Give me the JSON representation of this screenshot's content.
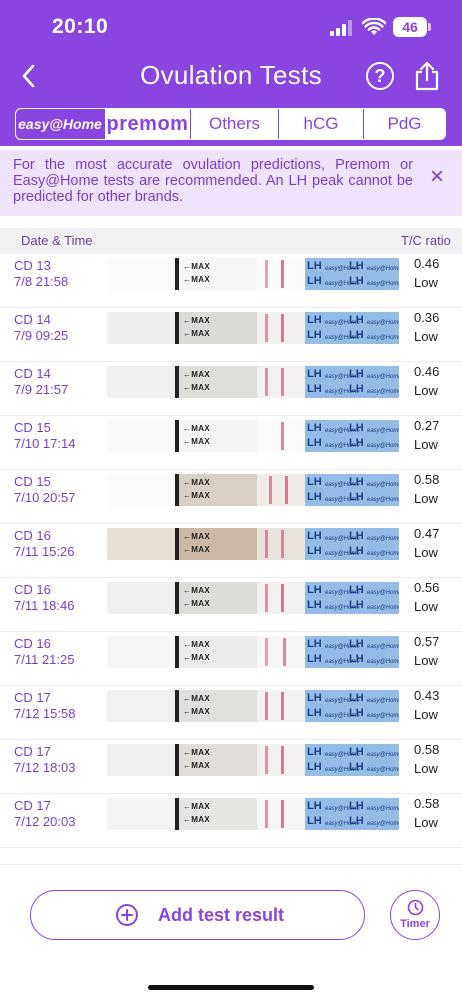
{
  "status_bar": {
    "time": "20:10",
    "battery": "46"
  },
  "nav": {
    "title": "Ovulation Tests"
  },
  "tabs": [
    {
      "label": "easy@Home",
      "active": true
    },
    {
      "label": "premom",
      "active": false
    },
    {
      "label": "Others",
      "active": false
    },
    {
      "label": "hCG",
      "active": false
    },
    {
      "label": "PdG",
      "active": false
    }
  ],
  "banner": {
    "text": "For the most accurate ovulation predictions, Premom or Easy@Home tests are recommended. An LH peak cannot be predicted for other brands."
  },
  "columns": {
    "date": "Date & Time",
    "ratio": "T/C ratio"
  },
  "strip_text": {
    "max": "MAX",
    "brand": "LH",
    "logo": "easy@Home"
  },
  "tests": [
    {
      "cd": "CD 13",
      "datetime": "7/8 21:58",
      "ratio": "0.46",
      "result": "Low"
    },
    {
      "cd": "CD 14",
      "datetime": "7/9 09:25",
      "ratio": "0.36",
      "result": "Low"
    },
    {
      "cd": "CD 14",
      "datetime": "7/9 21:57",
      "ratio": "0.46",
      "result": "Low"
    },
    {
      "cd": "CD 15",
      "datetime": "7/10 17:14",
      "ratio": "0.27",
      "result": "Low"
    },
    {
      "cd": "CD 15",
      "datetime": "7/10 20:57",
      "ratio": "0.58",
      "result": "Low"
    },
    {
      "cd": "CD 16",
      "datetime": "7/11 15:26",
      "ratio": "0.47",
      "result": "Low"
    },
    {
      "cd": "CD 16",
      "datetime": "7/11 18:46",
      "ratio": "0.56",
      "result": "Low"
    },
    {
      "cd": "CD 16",
      "datetime": "7/11 21:25",
      "ratio": "0.57",
      "result": "Low"
    },
    {
      "cd": "CD 17",
      "datetime": "7/12 15:58",
      "ratio": "0.43",
      "result": "Low"
    },
    {
      "cd": "CD 17",
      "datetime": "7/12 18:03",
      "ratio": "0.58",
      "result": "Low"
    },
    {
      "cd": "CD 17",
      "datetime": "7/12 20:03",
      "ratio": "0.58",
      "result": "Low"
    }
  ],
  "actions": {
    "add_label": "Add test result",
    "timer_label": "Timer"
  },
  "colors": {
    "accent": "#8a44e0",
    "banner_bg": "#efe3fb",
    "test_line": "#d06b88",
    "strip_label": "#93bde6"
  },
  "icons": {
    "back": "chevron-left-icon",
    "help": "question-circle-icon",
    "share": "share-icon",
    "close": "close-icon",
    "add": "plus-circle-icon",
    "timer": "clock-icon"
  }
}
